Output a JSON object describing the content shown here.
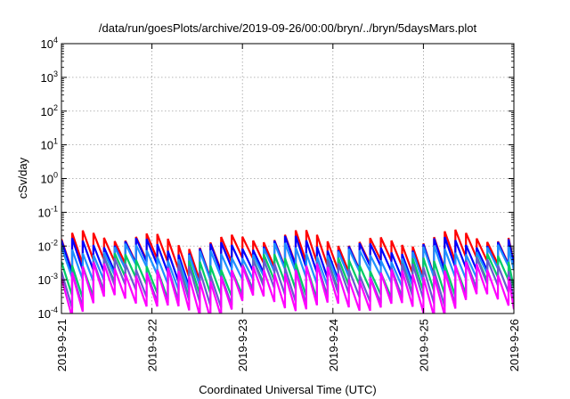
{
  "chart_data": {
    "type": "line",
    "title": "/data/run/goesPlots/archive/2019-09-26/00:00/bryn/../bryn/5daysMars.plot",
    "xlabel": "Coordinated Universal Time (UTC)",
    "ylabel": "cSv/day",
    "yscale": "log",
    "ylim": [
      0.0001,
      10000
    ],
    "xlim": [
      "2019-9-21",
      "2019-9-26"
    ],
    "x_ticks": [
      "2019-9-21",
      "2019-9-22",
      "2019-9-23",
      "2019-9-24",
      "2019-9-25",
      "2019-9-26"
    ],
    "y_ticks": [
      {
        "value": 0.0001,
        "base": "10",
        "exp": "-4"
      },
      {
        "value": 0.001,
        "base": "10",
        "exp": "-3"
      },
      {
        "value": 0.01,
        "base": "10",
        "exp": "-2"
      },
      {
        "value": 0.1,
        "base": "10",
        "exp": "-1"
      },
      {
        "value": 1,
        "base": "10",
        "exp": "0"
      },
      {
        "value": 10,
        "base": "10",
        "exp": "1"
      },
      {
        "value": 100,
        "base": "10",
        "exp": "2"
      },
      {
        "value": 1000,
        "base": "10",
        "exp": "3"
      },
      {
        "value": 10000,
        "base": "10",
        "exp": "4"
      }
    ],
    "grid": true,
    "sawtooth_cycles_per_day": 8.5,
    "series": [
      {
        "color": "#ff0000",
        "peak": 0.016,
        "trough": 0.0025
      },
      {
        "color": "#0000ff",
        "peak": 0.0105,
        "trough": 0.0016
      },
      {
        "color": "#1e90ff",
        "peak": 0.0065,
        "trough": 0.0011
      },
      {
        "color": "#00cc66",
        "peak": 0.0032,
        "trough": 0.00045
      },
      {
        "color": "#6a5acd",
        "peak": 0.0024,
        "trough": 0.00028
      },
      {
        "color": "#ff00ff",
        "peak": 0.0017,
        "trough": 0.00016
      }
    ]
  }
}
